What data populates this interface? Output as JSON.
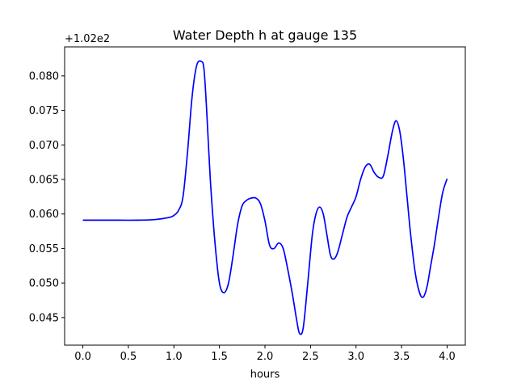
{
  "chart_data": {
    "type": "line",
    "title": "Water Depth h at gauge 135",
    "xlabel": "hours",
    "ylabel": "",
    "offset_label": "+1.02e2",
    "xlim": [
      -0.2,
      4.2
    ],
    "ylim": [
      0.041,
      0.0842
    ],
    "xticks": [
      0.0,
      0.5,
      1.0,
      1.5,
      2.0,
      2.5,
      3.0,
      3.5,
      4.0
    ],
    "xtick_labels": [
      "0.0",
      "0.5",
      "1.0",
      "1.5",
      "2.0",
      "2.5",
      "3.0",
      "3.5",
      "4.0"
    ],
    "yticks": [
      0.045,
      0.05,
      0.055,
      0.06,
      0.065,
      0.07,
      0.075,
      0.08
    ],
    "ytick_labels": [
      "0.045",
      "0.050",
      "0.055",
      "0.060",
      "0.065",
      "0.070",
      "0.075",
      "0.080"
    ],
    "grid": false,
    "series": [
      {
        "color": "#0000ff",
        "x": [
          0.0,
          0.2,
          0.4,
          0.6,
          0.8,
          0.95,
          1.0,
          1.05,
          1.1,
          1.15,
          1.2,
          1.25,
          1.3,
          1.33,
          1.36,
          1.4,
          1.45,
          1.5,
          1.55,
          1.6,
          1.65,
          1.7,
          1.75,
          1.8,
          1.85,
          1.9,
          1.95,
          2.0,
          2.05,
          2.1,
          2.15,
          2.2,
          2.25,
          2.3,
          2.35,
          2.38,
          2.42,
          2.47,
          2.52,
          2.56,
          2.6,
          2.64,
          2.68,
          2.72,
          2.76,
          2.8,
          2.85,
          2.9,
          2.95,
          3.0,
          3.05,
          3.1,
          3.15,
          3.2,
          3.25,
          3.3,
          3.35,
          3.4,
          3.44,
          3.48,
          3.52,
          3.56,
          3.6,
          3.65,
          3.7,
          3.74,
          3.78,
          3.82,
          3.86,
          3.9,
          3.95,
          4.0
        ],
        "y": [
          0.0591,
          0.0591,
          0.0591,
          0.0591,
          0.0592,
          0.0595,
          0.0598,
          0.0605,
          0.0625,
          0.069,
          0.077,
          0.0815,
          0.0821,
          0.081,
          0.075,
          0.065,
          0.056,
          0.05,
          0.0486,
          0.05,
          0.054,
          0.0585,
          0.0612,
          0.062,
          0.0623,
          0.0623,
          0.0615,
          0.059,
          0.0555,
          0.055,
          0.0558,
          0.055,
          0.052,
          0.0485,
          0.0445,
          0.0427,
          0.0435,
          0.05,
          0.057,
          0.06,
          0.061,
          0.06,
          0.057,
          0.054,
          0.0535,
          0.0545,
          0.057,
          0.0595,
          0.061,
          0.0625,
          0.065,
          0.0668,
          0.0672,
          0.066,
          0.0653,
          0.0655,
          0.0685,
          0.072,
          0.0735,
          0.072,
          0.068,
          0.0625,
          0.057,
          0.0515,
          0.0485,
          0.048,
          0.0495,
          0.0525,
          0.0555,
          0.059,
          0.063,
          0.0651
        ]
      }
    ]
  }
}
